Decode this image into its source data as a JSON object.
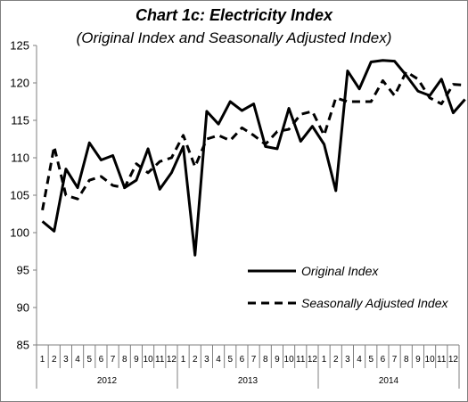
{
  "chart_data": {
    "type": "line",
    "title": "Chart 1c: Electricity Index",
    "subtitle": "(Original Index and Seasonally Adjusted Index)",
    "xlabel": "",
    "ylabel": "",
    "ylim": [
      85,
      125
    ],
    "yticks": [
      85,
      90,
      95,
      100,
      105,
      110,
      115,
      120,
      125
    ],
    "grid": false,
    "legend_position": "bottom-right",
    "years": [
      "2012",
      "2013",
      "2014"
    ],
    "months": [
      "1",
      "2",
      "3",
      "4",
      "5",
      "6",
      "7",
      "8",
      "9",
      "10",
      "11",
      "12"
    ],
    "series": [
      {
        "name": "Original Index",
        "style": "solid",
        "color": "#000000",
        "values": [
          101.5,
          100.2,
          108.5,
          106.0,
          112.0,
          109.7,
          110.3,
          106.0,
          107.0,
          111.2,
          105.8,
          108.0,
          111.5,
          97.0,
          116.2,
          114.5,
          117.5,
          116.3,
          117.2,
          111.5,
          111.2,
          116.6,
          112.2,
          114.2,
          111.8,
          105.6,
          121.6,
          119.2,
          122.8,
          123.0,
          122.9,
          121.0,
          118.9,
          118.3,
          120.5,
          116.0,
          117.8
        ]
      },
      {
        "name": "Seasonally Adjusted Index",
        "style": "dashed",
        "color": "#000000",
        "values": [
          103.0,
          111.5,
          105.0,
          104.5,
          107.0,
          107.5,
          106.3,
          106.0,
          109.2,
          108.0,
          109.5,
          110.0,
          113.0,
          108.8,
          112.5,
          113.0,
          112.3,
          114.0,
          113.0,
          111.8,
          113.5,
          113.8,
          115.8,
          116.2,
          113.0,
          118.0,
          117.5,
          117.5,
          117.5,
          120.3,
          118.3,
          121.5,
          120.5,
          118.0,
          117.2,
          119.8,
          119.7
        ]
      }
    ]
  }
}
